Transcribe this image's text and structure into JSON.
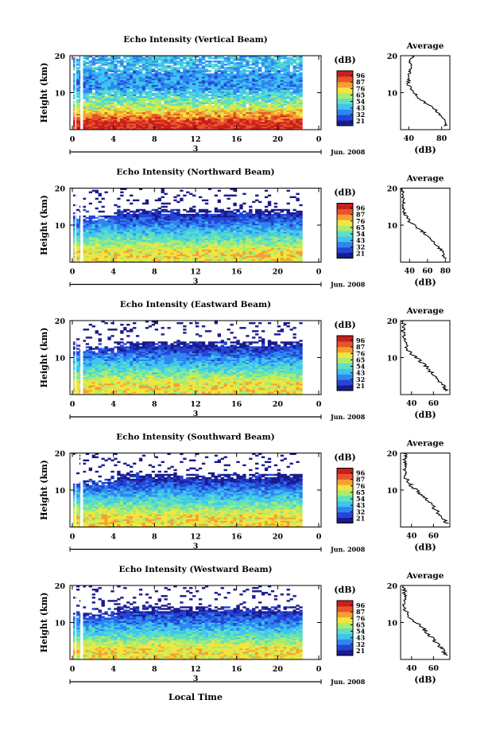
{
  "figure": {
    "xlabel": "Local Time",
    "month_label": "Jun. 2008",
    "date_label": "3",
    "colorbar_unit": "(dB)",
    "colorbar_ticks": [
      "96",
      "87",
      "76",
      "65",
      "54",
      "43",
      "32",
      "21"
    ],
    "colormap": [
      "#1a1a8c",
      "#2444d6",
      "#2f86f0",
      "#3fc4f0",
      "#5fe0c0",
      "#a8ec70",
      "#f0e640",
      "#f7a030",
      "#e8542a",
      "#c81e1e"
    ]
  },
  "chart_data": [
    {
      "type": "heatmap",
      "title": "Echo Intensity (Vertical Beam)",
      "ylabel": "Height (km)",
      "x_ticks": [
        "0",
        "4",
        "8",
        "12",
        "16",
        "20",
        "0"
      ],
      "y_ticks": [
        "20",
        "10"
      ],
      "xlim_hours": [
        0,
        24
      ],
      "ylim_km": [
        0,
        20
      ],
      "clim_db": [
        21,
        96
      ],
      "avg": {
        "title": "Average",
        "xlabel": "(dB)",
        "x_ticks": [
          "40",
          "80"
        ],
        "xlim": [
          30,
          90
        ],
        "y_ticks": [
          "20",
          "10"
        ],
        "profile_km": [
          1,
          2,
          3,
          4,
          5,
          6,
          7,
          8,
          9,
          10,
          11,
          12,
          13,
          14,
          15,
          16,
          17,
          18,
          19,
          20
        ],
        "profile_db": [
          84,
          86,
          82,
          78,
          74,
          68,
          62,
          55,
          50,
          46,
          42,
          40,
          39,
          41,
          40,
          42,
          44,
          41,
          43,
          45
        ]
      }
    },
    {
      "type": "heatmap",
      "title": "Echo Intensity (Northward Beam)",
      "ylabel": "Height (km)",
      "x_ticks": [
        "0",
        "4",
        "8",
        "12",
        "16",
        "20",
        "0"
      ],
      "y_ticks": [
        "20",
        "10"
      ],
      "xlim_hours": [
        0,
        24
      ],
      "ylim_km": [
        0,
        20
      ],
      "clim_db": [
        21,
        96
      ],
      "avg": {
        "title": "Average",
        "xlabel": "(dB)",
        "x_ticks": [
          "40",
          "60",
          "80"
        ],
        "xlim": [
          30,
          85
        ],
        "y_ticks": [
          "20",
          "10"
        ],
        "profile_km": [
          1,
          2,
          3,
          4,
          5,
          6,
          7,
          8,
          9,
          10,
          11,
          12,
          13,
          14,
          15,
          16,
          17,
          18,
          19,
          20
        ],
        "profile_db": [
          80,
          78,
          76,
          72,
          68,
          64,
          60,
          56,
          50,
          45,
          40,
          37,
          35,
          34,
          33,
          33,
          32,
          32,
          32,
          32
        ]
      }
    },
    {
      "type": "heatmap",
      "title": "Echo Intensity (Eastward Beam)",
      "ylabel": "Height (km)",
      "x_ticks": [
        "0",
        "4",
        "8",
        "12",
        "16",
        "20",
        "0"
      ],
      "y_ticks": [
        "20",
        "10"
      ],
      "xlim_hours": [
        0,
        24
      ],
      "ylim_km": [
        0,
        20
      ],
      "clim_db": [
        21,
        96
      ],
      "avg": {
        "title": "Average",
        "xlabel": "(dB)",
        "x_ticks": [
          "40",
          "60"
        ],
        "xlim": [
          30,
          75
        ],
        "y_ticks": [
          "20",
          "10"
        ],
        "profile_km": [
          1,
          2,
          3,
          4,
          5,
          6,
          7,
          8,
          9,
          10,
          11,
          12,
          13,
          14,
          15,
          16,
          17,
          18,
          19,
          20
        ],
        "profile_db": [
          72,
          70,
          68,
          64,
          62,
          58,
          55,
          52,
          48,
          44,
          40,
          37,
          35,
          34,
          33,
          33,
          32,
          32,
          33,
          32
        ]
      }
    },
    {
      "type": "heatmap",
      "title": "Echo Intensity (Southward Beam)",
      "ylabel": "Height (km)",
      "x_ticks": [
        "0",
        "4",
        "8",
        "12",
        "16",
        "20",
        "0"
      ],
      "y_ticks": [
        "20",
        "10"
      ],
      "xlim_hours": [
        0,
        24
      ],
      "ylim_km": [
        0,
        20
      ],
      "clim_db": [
        21,
        96
      ],
      "avg": {
        "title": "Average",
        "xlabel": "(dB)",
        "x_ticks": [
          "40",
          "60"
        ],
        "xlim": [
          30,
          75
        ],
        "y_ticks": [
          "20",
          "10"
        ],
        "profile_km": [
          1,
          2,
          3,
          4,
          5,
          6,
          7,
          8,
          9,
          10,
          11,
          12,
          13,
          14,
          15,
          16,
          17,
          18,
          19,
          20
        ],
        "profile_db": [
          72,
          70,
          67,
          64,
          61,
          58,
          55,
          52,
          48,
          44,
          40,
          38,
          35,
          35,
          34,
          33,
          35,
          34,
          35,
          34
        ]
      }
    },
    {
      "type": "heatmap",
      "title": "Echo Intensity (Westward Beam)",
      "ylabel": "Height (km)",
      "x_ticks": [
        "0",
        "4",
        "8",
        "12",
        "16",
        "20",
        "0"
      ],
      "y_ticks": [
        "20",
        "10"
      ],
      "xlim_hours": [
        0,
        24
      ],
      "ylim_km": [
        0,
        20
      ],
      "clim_db": [
        21,
        96
      ],
      "avg": {
        "title": "Average",
        "xlabel": "(dB)",
        "x_ticks": [
          "40",
          "60"
        ],
        "xlim": [
          30,
          75
        ],
        "y_ticks": [
          "20",
          "10"
        ],
        "profile_km": [
          1,
          2,
          3,
          4,
          5,
          6,
          7,
          8,
          9,
          10,
          11,
          12,
          13,
          14,
          15,
          16,
          17,
          18,
          19,
          20
        ],
        "profile_db": [
          72,
          70,
          68,
          64,
          61,
          58,
          55,
          52,
          48,
          44,
          40,
          37,
          35,
          34,
          33,
          33,
          34,
          33,
          34,
          33
        ]
      }
    }
  ]
}
